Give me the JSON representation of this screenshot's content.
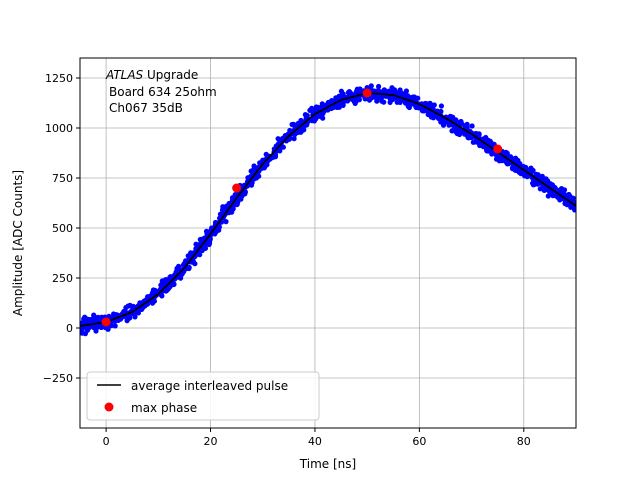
{
  "chart_data": {
    "type": "scatter",
    "xlabel": "Time [ns]",
    "ylabel": "Amplitude [ADC Counts]",
    "xlim": [
      -5,
      90
    ],
    "ylim": [
      -500,
      1350
    ],
    "x_ticks": [
      0,
      20,
      40,
      60,
      80
    ],
    "y_ticks": [
      -250,
      0,
      250,
      500,
      750,
      1000,
      1250
    ],
    "grid": true,
    "legend_position": "lower-left",
    "annotation": {
      "italic": "ATLAS",
      "line1_rest": " Upgrade",
      "line2": "Board 634 25ohm",
      "line3": "Ch067 35dB",
      "position": "top-left"
    },
    "series": [
      {
        "name": "average interleaved pulse",
        "kind": "line",
        "color": "#000000",
        "x": [
          -5,
          0,
          5,
          10,
          15,
          20,
          25,
          30,
          35,
          40,
          45,
          50,
          55,
          60,
          65,
          70,
          75,
          80,
          85,
          90
        ],
        "y": [
          10,
          30,
          80,
          170,
          300,
          470,
          650,
          820,
          960,
          1070,
          1140,
          1175,
          1165,
          1120,
          1050,
          970,
          880,
          790,
          700,
          610
        ]
      },
      {
        "kind": "scatter",
        "color": "#0000ff",
        "description_free": true,
        "x_range": [
          -5,
          90
        ],
        "noise": 30
      },
      {
        "name": "max phase",
        "kind": "points",
        "color": "#ff0000",
        "x": [
          0,
          25,
          50,
          75
        ],
        "y": [
          30,
          700,
          1175,
          895
        ]
      }
    ]
  }
}
